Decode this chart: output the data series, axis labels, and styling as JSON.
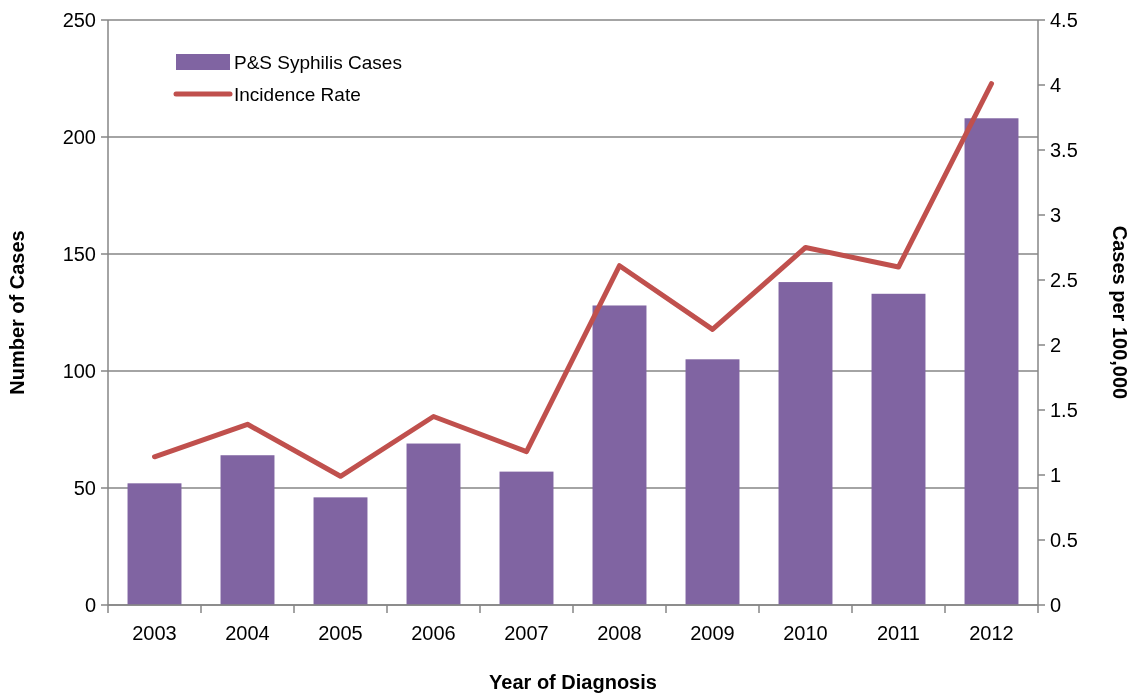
{
  "chart_data": {
    "type": "bar",
    "xlabel": "Year of Diagnosis",
    "ylabel": "Number of Cases",
    "y2label": "Cases per 100,000",
    "categories": [
      "2003",
      "2004",
      "2005",
      "2006",
      "2007",
      "2008",
      "2009",
      "2010",
      "2011",
      "2012"
    ],
    "series": [
      {
        "name": "P&S Syphilis Cases",
        "color": "#8064a2",
        "values": [
          52,
          64,
          46,
          69,
          57,
          128,
          105,
          138,
          133,
          208
        ]
      },
      {
        "name": "Incidence Rate",
        "type": "line",
        "axis": "y2",
        "color": "#c0504d",
        "values": [
          1.14,
          1.39,
          0.99,
          1.45,
          1.18,
          2.61,
          2.12,
          2.75,
          2.6,
          4.01
        ]
      }
    ],
    "ylim": [
      0,
      250
    ],
    "yticks": [
      0,
      50,
      100,
      150,
      200,
      250
    ],
    "y2lim": [
      0,
      4.5
    ],
    "y2ticks": [
      0,
      0.5,
      1,
      1.5,
      2,
      2.5,
      3,
      3.5,
      4,
      4.5
    ],
    "grid": "y",
    "legend": "top left"
  }
}
